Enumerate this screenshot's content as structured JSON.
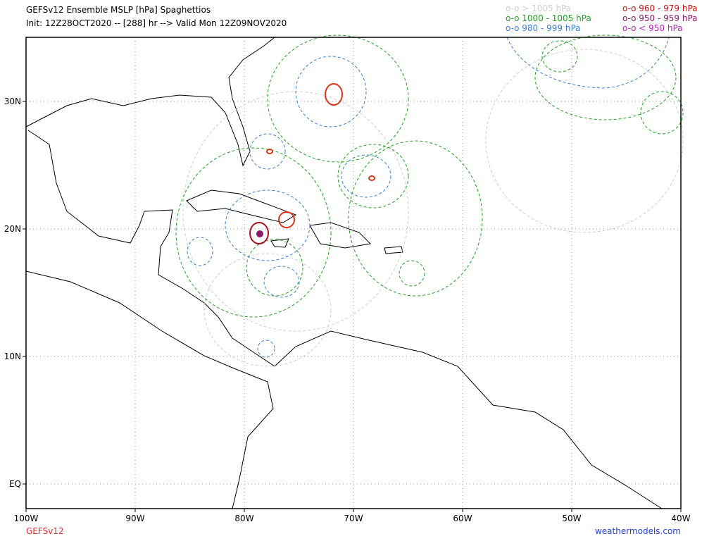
{
  "header": {
    "title": "GEFSv12 Ensemble MSLP [hPa] Spaghettios",
    "subtitle": "Init: 12Z28OCT2020 -- [288] hr --> Valid Mon 12Z09NOV2020"
  },
  "legend": [
    {
      "text": "o-o > 1005 hPa",
      "color": "#cfcfcf"
    },
    {
      "text": "o-o 1000 - 1005 hPa",
      "color": "#22a022"
    },
    {
      "text": "o-o 980 - 999 hPa",
      "color": "#3a7fd5"
    },
    {
      "text": "o-o 960 - 979 hPa",
      "color": "#cc1111"
    },
    {
      "text": "o-o 950 - 959 hPa",
      "color": "#8b1a6b"
    },
    {
      "text": "o-o < 950 hPa",
      "color": "#c020c0"
    }
  ],
  "map": {
    "lon_labels": [
      "100W",
      "90W",
      "80W",
      "70W",
      "60W",
      "50W",
      "40W"
    ],
    "lat_labels": [
      "30N",
      "20N",
      "10N",
      "EQ"
    ]
  },
  "footer": {
    "model": "GEFSv12",
    "source": "weathermodels.com"
  }
}
